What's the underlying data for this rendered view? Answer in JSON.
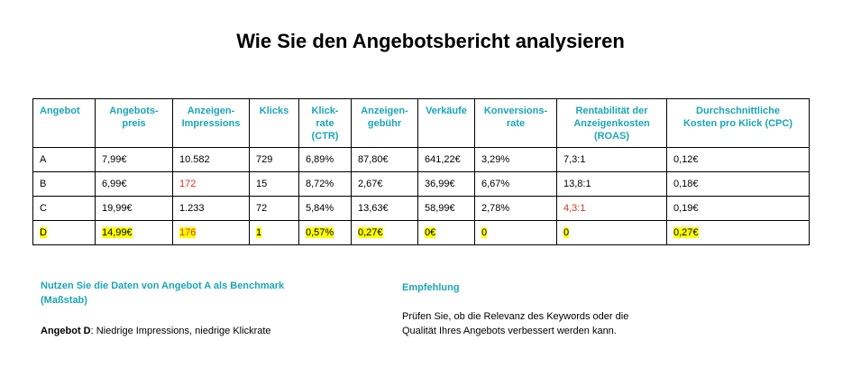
{
  "title": "Wie Sie den Angebotsbericht analysieren",
  "table": {
    "headers": [
      "Angebot",
      "Angebots-\npreis",
      "Anzeigen-\nImpressions",
      "Klicks",
      "Klick-\nrate\n(CTR)",
      "Anzeigen-\ngebühr",
      "Verkäufe",
      "Konversions-\nrate",
      "Rentabilität der\nAnzeigenkosten\n(ROAS)",
      "Durchschnittliche\nKosten pro Klick (CPC)"
    ],
    "rows": [
      [
        "A",
        "7,99€",
        "10.582",
        "729",
        "6,89%",
        "87,80€",
        "641,22€",
        "3,29%",
        "7,3:1",
        "0,12€"
      ],
      [
        "B",
        "6,99€",
        "172",
        "15",
        "8,72%",
        "2,67€",
        "36,99€",
        "6,67%",
        "13,8:1",
        "0,18€"
      ],
      [
        "C",
        "19,99€",
        "1.233",
        "72",
        "5,84%",
        "13,63€",
        "58,99€",
        "2,78%",
        "4,3:1",
        "0,19€"
      ],
      [
        "D",
        "14,99€",
        "176",
        "1",
        "0,57%",
        "0,27€",
        "0€",
        "0",
        "0",
        "0,27€"
      ]
    ]
  },
  "colors": {
    "accent": "#1aa6b7",
    "highlight": "#ffff00",
    "warning": "#e0301e"
  },
  "notes": {
    "benchmark_heading": "Nutzen Sie die Daten von Angebot A als Benchmark (Maßstab)",
    "offer_d_label": "Angebot D",
    "offer_d_text": ": Niedrige Impressions, niedrige Klickrate",
    "recommendation_heading": "Empfehlung",
    "recommendation_text": "Prüfen Sie, ob die Relevanz des Keywords oder die Qualität Ihres Angebots verbessert werden kann."
  }
}
